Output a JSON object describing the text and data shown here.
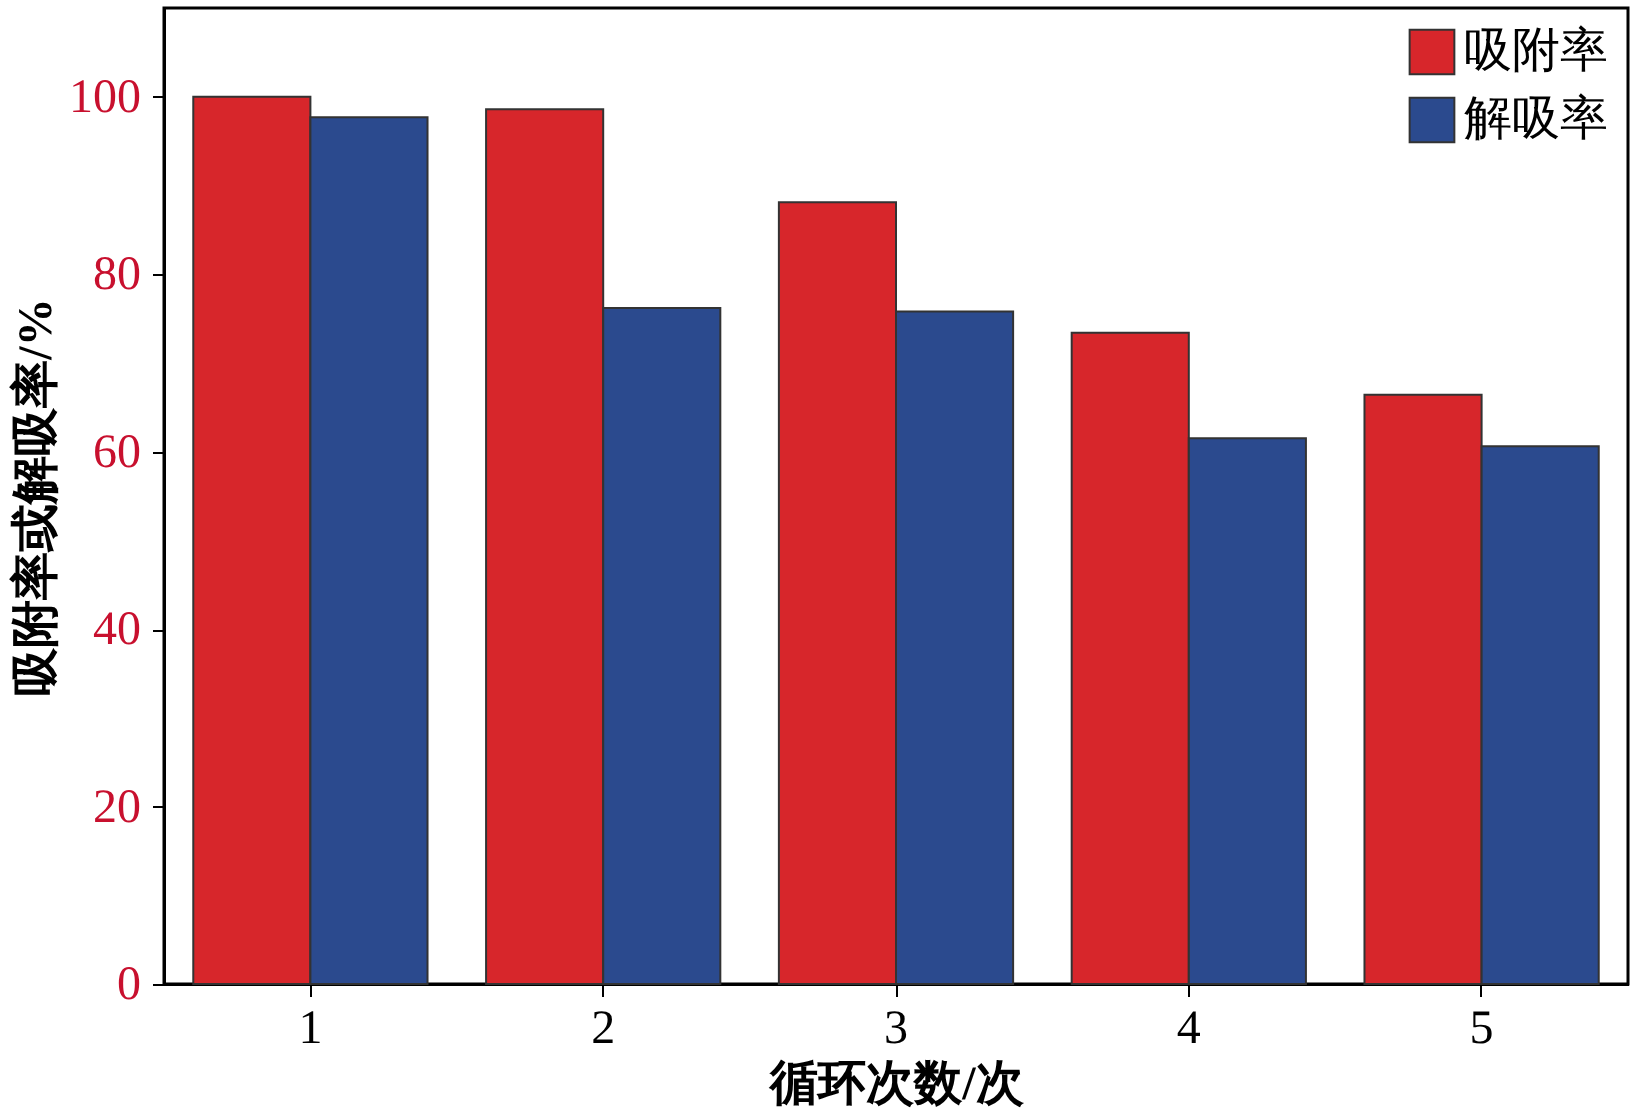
{
  "chart_data": {
    "type": "bar",
    "xlabel": "循环次数/次",
    "ylabel": "吸附率或解吸率/%",
    "categories": [
      "1",
      "2",
      "3",
      "4",
      "5"
    ],
    "series": [
      {
        "name": "吸附率",
        "color": "#d7262b",
        "values": [
          100,
          98.6,
          88.1,
          73.4,
          66.4
        ]
      },
      {
        "name": "解吸率",
        "color": "#2b4a8e",
        "values": [
          97.7,
          76.2,
          75.8,
          61.5,
          60.6
        ]
      }
    ],
    "ylim": [
      0,
      110
    ],
    "yticks": [
      0,
      20,
      40,
      60,
      80,
      100
    ],
    "grid": false,
    "legend": "top right"
  }
}
